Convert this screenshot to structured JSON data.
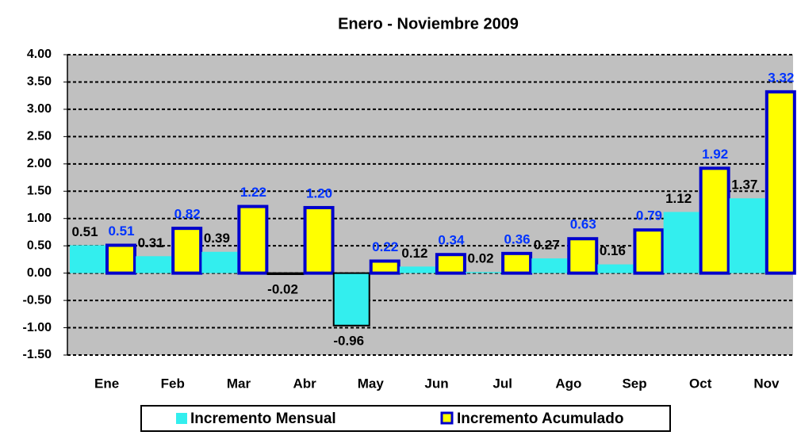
{
  "chart_data": {
    "type": "bar",
    "title": "Enero - Noviembre 2009",
    "categories": [
      "Ene",
      "Feb",
      "Mar",
      "Abr",
      "May",
      "Jun",
      "Jul",
      "Ago",
      "Sep",
      "Oct",
      "Nov"
    ],
    "series": [
      {
        "name": "Incremento Mensual",
        "color": "#33eeee",
        "label_color": "#000000",
        "values": [
          0.51,
          0.31,
          0.39,
          -0.02,
          -0.96,
          0.12,
          0.02,
          0.27,
          0.16,
          1.12,
          1.37
        ]
      },
      {
        "name": "Incremento Acumulado",
        "color": "#ffff00",
        "border_color": "#0000cc",
        "label_color": "#0033ff",
        "values": [
          0.51,
          0.82,
          1.22,
          1.2,
          0.22,
          0.34,
          0.36,
          0.63,
          0.79,
          1.92,
          3.32
        ],
        "value_labels": [
          "0.51",
          "0.82",
          "1.22",
          "1.20",
          "0.22",
          "0.34",
          "0.36",
          "0.63",
          "0.79",
          "1.92",
          "3.32"
        ]
      }
    ],
    "ylim": [
      -1.5,
      4
    ],
    "yticks": [
      {
        "value": -1.5,
        "label": "-1.50"
      },
      {
        "value": -1,
        "label": "-1.00"
      },
      {
        "value": -0.5,
        "label": "-0.50"
      },
      {
        "value": 0,
        "label": "0.00"
      },
      {
        "value": 0.5,
        "label": "0.50"
      },
      {
        "value": 1,
        "label": "1.00"
      },
      {
        "value": 1.5,
        "label": "1.50"
      },
      {
        "value": 2,
        "label": "2.00"
      },
      {
        "value": 2.5,
        "label": "2.50"
      },
      {
        "value": 3,
        "label": "3.00"
      },
      {
        "value": 3.5,
        "label": "3.50"
      },
      {
        "value": 4,
        "label": "4.00"
      }
    ],
    "grid": true,
    "plot_background": "#c0c0c0",
    "legend_position": "bottom"
  }
}
